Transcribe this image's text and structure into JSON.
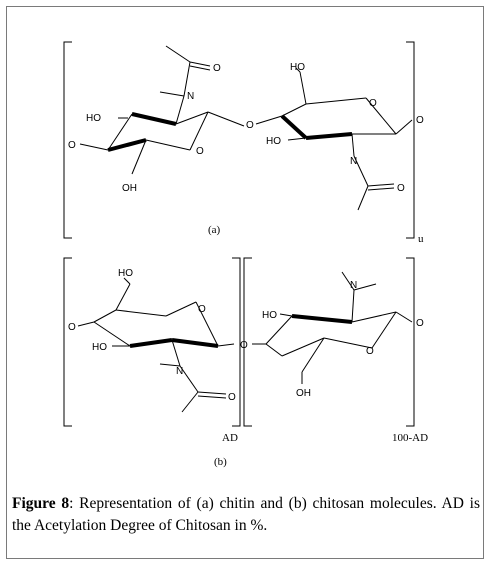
{
  "figure": {
    "label": "Figure 8",
    "caption_text": ": Representation of (a) chitin and (b) chitosan molecules. AD is the Acetylation Degree of Chitosan in %."
  },
  "diagram_a": {
    "panel_label": "(a)",
    "repeat_subscript": "u",
    "atoms": {
      "O": "O",
      "N": "N",
      "HO": "HO",
      "OH": "OH"
    }
  },
  "diagram_b": {
    "panel_label": "(b)",
    "subscript_left": "AD",
    "subscript_right": "100-AD"
  }
}
